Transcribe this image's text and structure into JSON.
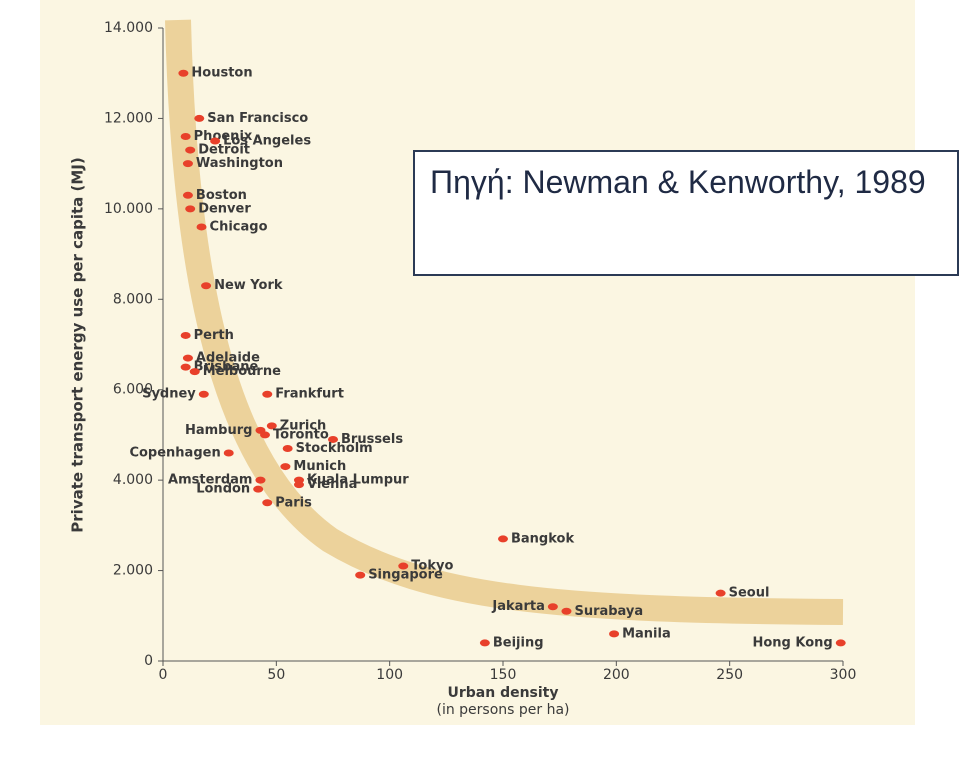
{
  "chart_data": {
    "type": "scatter",
    "y_label": "Private transport energy use per capita (MJ)",
    "x_label": "Urban density",
    "x_sublabel": "(in persons per ha)",
    "annotation": "Πηγή: Newman & Kenworthy, 1989",
    "color": "#e8402a",
    "labels": [
      "Houston",
      "San Francisco",
      "Phoenix",
      "Los Angeles",
      "Detroit",
      "Washington",
      "Boston",
      "Denver",
      "Chicago",
      "New York",
      "Perth",
      "Adelaide",
      "Brisbane",
      "Melbourne",
      "Frankfurt",
      "Sydney",
      "Zurich",
      "Hamburg",
      "Toronto",
      "Brussels",
      "Copenhagen",
      "Stockholm",
      "Munich",
      "Amsterdam",
      "Kuala Lumpur",
      "London",
      "Vienna",
      "Paris",
      "Bangkok",
      "Tokyo",
      "Singapore",
      "Jakarta",
      "Surabaya",
      "Seoul",
      "Manila",
      "Beijing",
      "Hong Kong"
    ],
    "x": [
      9,
      16,
      10,
      23,
      12,
      11,
      11,
      12,
      17,
      19,
      10,
      11,
      10,
      14,
      46,
      18,
      48,
      43,
      45,
      75,
      29,
      55,
      54,
      43,
      60,
      42,
      60,
      46,
      150,
      106,
      87,
      172,
      178,
      246,
      199,
      142,
      299
    ],
    "values": [
      13000,
      12000,
      11600,
      11500,
      11300,
      11000,
      10300,
      10000,
      9600,
      8300,
      7200,
      6700,
      6500,
      6400,
      5900,
      5900,
      5200,
      5100,
      5000,
      4900,
      4600,
      4700,
      4300,
      4000,
      4000,
      3800,
      3900,
      3500,
      2700,
      2100,
      1900,
      1200,
      1100,
      1500,
      600,
      400,
      400
    ],
    "xlim": [
      0,
      300
    ],
    "xticks": [
      0,
      50,
      100,
      150,
      200,
      250,
      300
    ],
    "ylim": [
      0,
      14000
    ],
    "yticks": [
      0,
      {
        "value": 2000,
        "label": "2.000"
      },
      {
        "value": 4000,
        "label": "4.000"
      },
      {
        "value": 6000,
        "label": "6.000"
      },
      {
        "value": 8000,
        "label": "8.000"
      },
      {
        "value": 10000,
        "label": "10.000"
      },
      {
        "value": 12000,
        "label": "12.000"
      },
      {
        "value": 14000,
        "label": "14.000"
      }
    ]
  }
}
